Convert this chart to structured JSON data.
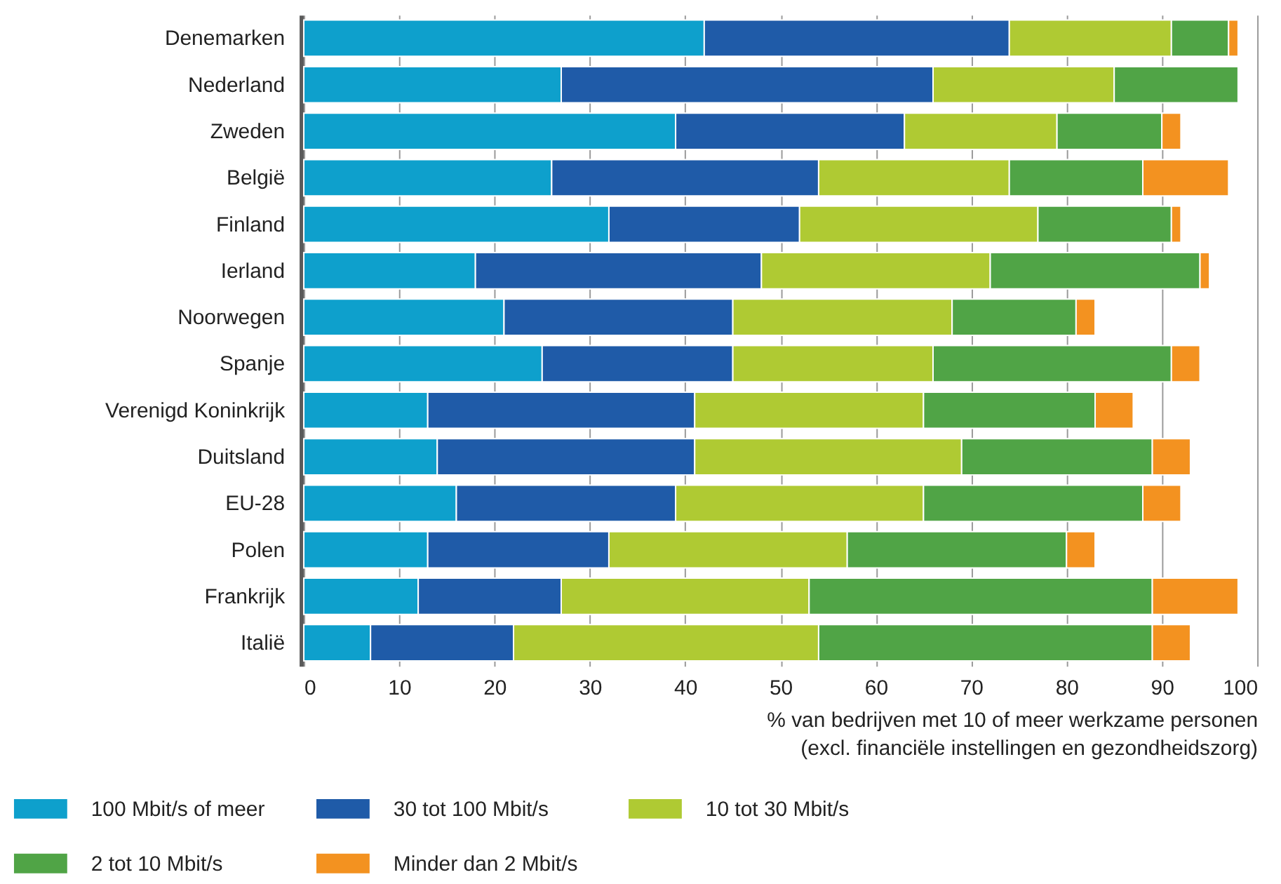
{
  "chart_data": {
    "type": "bar",
    "orientation": "horizontal",
    "stacked": true,
    "categories": [
      "Denemarken",
      "Nederland",
      "Zweden",
      "België",
      "Finland",
      "Ierland",
      "Noorwegen",
      "Spanje",
      "Verenigd Koninkrijk",
      "Duitsland",
      "EU-28",
      "Polen",
      "Frankrijk",
      "Italië"
    ],
    "series": [
      {
        "name": "100 Mbit/s of meer",
        "color": "#0ea0cc",
        "values": [
          42,
          27,
          39,
          26,
          32,
          18,
          21,
          25,
          13,
          14,
          16,
          13,
          12,
          7
        ]
      },
      {
        "name": "30 tot 100 Mbit/s",
        "color": "#1f5ba8",
        "values": [
          32,
          39,
          24,
          28,
          20,
          30,
          24,
          20,
          28,
          27,
          23,
          19,
          15,
          15
        ]
      },
      {
        "name": "10 tot 30 Mbit/s",
        "color": "#afca33",
        "values": [
          17,
          19,
          16,
          20,
          25,
          24,
          23,
          21,
          24,
          28,
          26,
          25,
          26,
          32
        ]
      },
      {
        "name": "2 tot 10 Mbit/s",
        "color": "#50a446",
        "values": [
          6,
          13,
          11,
          14,
          14,
          22,
          13,
          25,
          18,
          20,
          23,
          23,
          36,
          35
        ]
      },
      {
        "name": "Minder dan 2 Mbit/s",
        "color": "#f39220",
        "values": [
          1,
          null,
          2,
          9,
          1,
          1,
          2,
          3,
          4,
          4,
          4,
          3,
          9,
          4
        ]
      }
    ],
    "xlim": [
      0,
      100
    ],
    "xticks": [
      0,
      10,
      20,
      30,
      40,
      50,
      60,
      70,
      80,
      90,
      100
    ],
    "xlabel": "% van bedrijven met 10 of meer werkzame personen\n(excl. financiële instellingen en gezondheidszorg)",
    "grid": "x",
    "legend": "bottom"
  }
}
